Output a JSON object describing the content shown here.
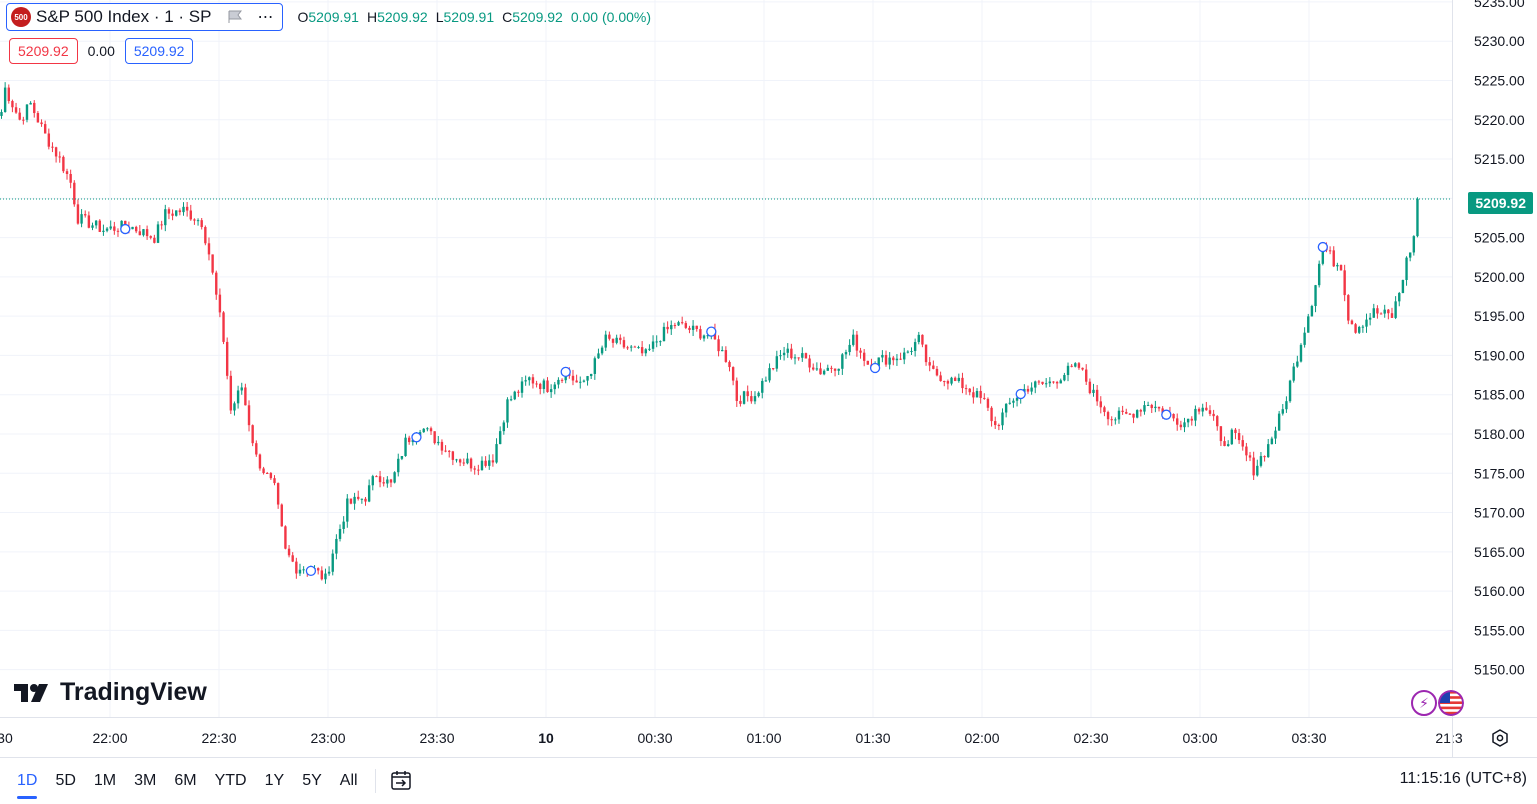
{
  "header": {
    "logo_text": "500",
    "title": "S&P 500 Index · 1 · SP",
    "ohlc": [
      {
        "label": "O",
        "value": "5209.91"
      },
      {
        "label": "H",
        "value": "5209.92"
      },
      {
        "label": "L",
        "value": "5209.91"
      },
      {
        "label": "C",
        "value": "5209.92"
      },
      {
        "label": "",
        "value": "0.00 (0.00%)"
      }
    ],
    "sell_price": "5209.92",
    "spread": "0.00",
    "buy_price": "5209.92"
  },
  "watermark": "TradingView",
  "current_price_label": "5209.92",
  "bottom_bar": {
    "ranges": [
      "1D",
      "5D",
      "1M",
      "3M",
      "6M",
      "YTD",
      "1Y",
      "5Y",
      "All"
    ],
    "active_range": "1D",
    "clock": "11:15:16 (UTC+8)"
  },
  "colors": {
    "up": "#089981",
    "down": "#f23645",
    "grid": "#f0f3fa",
    "accent": "#2962ff",
    "price_line": "#089981"
  },
  "icons": [
    "flag-icon",
    "more-icon",
    "goto-date-icon",
    "settings-icon",
    "lightning-icon",
    "us-flag-icon"
  ],
  "chart_data": {
    "type": "candlestick",
    "y_ticks": [
      "5150.00",
      "5155.00",
      "5160.00",
      "5165.00",
      "5170.00",
      "5175.00",
      "5180.00",
      "5185.00",
      "5190.00",
      "5195.00",
      "5200.00",
      "5205.00",
      "5210.00",
      "5215.00",
      "5220.00",
      "5225.00",
      "5230.00",
      "5235.00"
    ],
    "ylim": [
      5145.5,
      5235.5
    ],
    "x_ticks": [
      ":30",
      "22:00",
      "22:30",
      "23:00",
      "23:30",
      "10",
      "00:30",
      "01:00",
      "01:30",
      "02:00",
      "02:30",
      "03:00",
      "03:30",
      "21:3"
    ],
    "x_tick_bold": "10",
    "current_price": 5209.92,
    "bar_interval_minutes": 1,
    "anchors": [
      {
        "t": "21:30",
        "p": 5221
      },
      {
        "t": "21:31",
        "p": 5224
      },
      {
        "t": "21:35",
        "p": 5220
      },
      {
        "t": "21:38",
        "p": 5222
      },
      {
        "t": "21:42",
        "p": 5218
      },
      {
        "t": "21:46",
        "p": 5215
      },
      {
        "t": "21:49",
        "p": 5212
      },
      {
        "t": "21:51",
        "p": 5207.5
      },
      {
        "t": "21:58",
        "p": 5206
      },
      {
        "t": "22:05",
        "p": 5206.5
      },
      {
        "t": "22:12",
        "p": 5205
      },
      {
        "t": "22:15",
        "p": 5208
      },
      {
        "t": "22:20",
        "p": 5208.5
      },
      {
        "t": "22:25",
        "p": 5207
      },
      {
        "t": "22:27",
        "p": 5203
      },
      {
        "t": "22:31",
        "p": 5192
      },
      {
        "t": "22:33",
        "p": 5183
      },
      {
        "t": "22:36",
        "p": 5186
      },
      {
        "t": "22:40",
        "p": 5177
      },
      {
        "t": "22:45",
        "p": 5173
      },
      {
        "t": "22:48",
        "p": 5165
      },
      {
        "t": "22:51",
        "p": 5163
      },
      {
        "t": "22:55",
        "p": 5163
      },
      {
        "t": "22:59",
        "p": 5161.5
      },
      {
        "t": "23:01",
        "p": 5165
      },
      {
        "t": "23:05",
        "p": 5171
      },
      {
        "t": "23:10",
        "p": 5172
      },
      {
        "t": "23:13",
        "p": 5175
      },
      {
        "t": "23:17",
        "p": 5173.5
      },
      {
        "t": "23:21",
        "p": 5179
      },
      {
        "t": "23:25",
        "p": 5181
      },
      {
        "t": "23:30",
        "p": 5179
      },
      {
        "t": "23:35",
        "p": 5177
      },
      {
        "t": "23:40",
        "p": 5176
      },
      {
        "t": "23:45",
        "p": 5177
      },
      {
        "t": "23:49",
        "p": 5184
      },
      {
        "t": "23:55",
        "p": 5187
      },
      {
        "t": "00:00",
        "p": 5186
      },
      {
        "t": "00:05",
        "p": 5188
      },
      {
        "t": "00:09",
        "p": 5186
      },
      {
        "t": "00:13",
        "p": 5189
      },
      {
        "t": "00:16",
        "p": 5192
      },
      {
        "t": "00:22",
        "p": 5191
      },
      {
        "t": "00:27",
        "p": 5190
      },
      {
        "t": "00:31",
        "p": 5192.5
      },
      {
        "t": "00:35",
        "p": 5194
      },
      {
        "t": "00:41",
        "p": 5193
      },
      {
        "t": "00:45",
        "p": 5192.5
      },
      {
        "t": "00:50",
        "p": 5189
      },
      {
        "t": "00:52",
        "p": 5184.5
      },
      {
        "t": "00:57",
        "p": 5185
      },
      {
        "t": "01:01",
        "p": 5188
      },
      {
        "t": "01:05",
        "p": 5190.5
      },
      {
        "t": "01:11",
        "p": 5189.5
      },
      {
        "t": "01:15",
        "p": 5188
      },
      {
        "t": "01:20",
        "p": 5189
      },
      {
        "t": "01:24",
        "p": 5192
      },
      {
        "t": "01:28",
        "p": 5189
      },
      {
        "t": "01:32",
        "p": 5189.5
      },
      {
        "t": "01:38",
        "p": 5190
      },
      {
        "t": "01:42",
        "p": 5192
      },
      {
        "t": "01:45",
        "p": 5188
      },
      {
        "t": "01:50",
        "p": 5187
      },
      {
        "t": "01:55",
        "p": 5186
      },
      {
        "t": "02:00",
        "p": 5184
      },
      {
        "t": "02:03",
        "p": 5181
      },
      {
        "t": "02:08",
        "p": 5184.5
      },
      {
        "t": "02:12",
        "p": 5186
      },
      {
        "t": "02:18",
        "p": 5186.5
      },
      {
        "t": "02:23",
        "p": 5188
      },
      {
        "t": "02:26",
        "p": 5188.5
      },
      {
        "t": "02:30",
        "p": 5185
      },
      {
        "t": "02:35",
        "p": 5182
      },
      {
        "t": "02:40",
        "p": 5182.5
      },
      {
        "t": "02:45",
        "p": 5184
      },
      {
        "t": "02:52",
        "p": 5182
      },
      {
        "t": "02:55",
        "p": 5181.5
      },
      {
        "t": "03:00",
        "p": 5184
      },
      {
        "t": "03:03",
        "p": 5182
      },
      {
        "t": "03:05",
        "p": 5178.5
      },
      {
        "t": "03:08",
        "p": 5180
      },
      {
        "t": "03:11",
        "p": 5178
      },
      {
        "t": "03:14",
        "p": 5175.5
      },
      {
        "t": "03:18",
        "p": 5178.5
      },
      {
        "t": "03:22",
        "p": 5183
      },
      {
        "t": "03:26",
        "p": 5190
      },
      {
        "t": "03:30",
        "p": 5197
      },
      {
        "t": "03:33",
        "p": 5204
      },
      {
        "t": "03:36",
        "p": 5202
      },
      {
        "t": "03:38",
        "p": 5201.5
      },
      {
        "t": "03:40",
        "p": 5195
      },
      {
        "t": "03:42",
        "p": 5193.5
      },
      {
        "t": "03:47",
        "p": 5195.5
      },
      {
        "t": "03:52",
        "p": 5195
      },
      {
        "t": "03:54",
        "p": 5198
      },
      {
        "t": "03:56",
        "p": 5202
      },
      {
        "t": "03:58",
        "p": 5205
      },
      {
        "t": "03:59",
        "p": 5209.92
      }
    ],
    "event_markers": [
      "22:04",
      "22:55",
      "23:24",
      "00:05",
      "00:45",
      "01:30",
      "02:10",
      "02:50",
      "03:33"
    ]
  }
}
